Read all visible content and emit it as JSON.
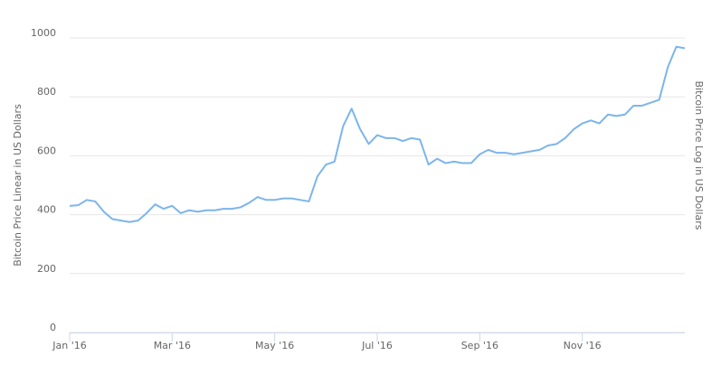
{
  "chart_data": {
    "type": "line",
    "y_axis_title": "Bitcoin Price Linear in US Dollars",
    "y2_axis_title": "Bitcoin Price Log in US Dollars",
    "color": "#7cb5ec",
    "grid": true,
    "ylim": [
      0,
      1000
    ],
    "yticks": [
      0,
      200,
      400,
      600,
      800,
      1000
    ],
    "categories": [
      "Jan '16",
      null,
      null,
      null,
      null,
      null,
      null,
      null,
      null,
      null,
      null,
      null,
      "Mar '16",
      null,
      null,
      null,
      null,
      null,
      null,
      null,
      null,
      null,
      null,
      null,
      "May '16",
      null,
      null,
      null,
      null,
      null,
      null,
      null,
      null,
      null,
      null,
      null,
      "Jul '16",
      null,
      null,
      null,
      null,
      null,
      null,
      null,
      null,
      null,
      null,
      null,
      "Sep '16",
      null,
      null,
      null,
      null,
      null,
      null,
      null,
      null,
      null,
      null,
      null,
      "Nov '16",
      null,
      null,
      null,
      null,
      null,
      null,
      null,
      null,
      null,
      null,
      null,
      null
    ],
    "values": [
      430,
      432,
      450,
      445,
      410,
      385,
      380,
      375,
      380,
      405,
      435,
      420,
      430,
      405,
      415,
      410,
      415,
      415,
      420,
      420,
      425,
      440,
      460,
      450,
      450,
      455,
      455,
      450,
      445,
      530,
      570,
      580,
      700,
      760,
      690,
      640,
      670,
      660,
      660,
      650,
      660,
      655,
      570,
      590,
      575,
      580,
      575,
      575,
      605,
      620,
      610,
      610,
      605,
      610,
      615,
      620,
      635,
      640,
      660,
      690,
      710,
      720,
      710,
      740,
      735,
      740,
      770,
      770,
      780,
      790,
      900,
      970,
      965
    ]
  }
}
